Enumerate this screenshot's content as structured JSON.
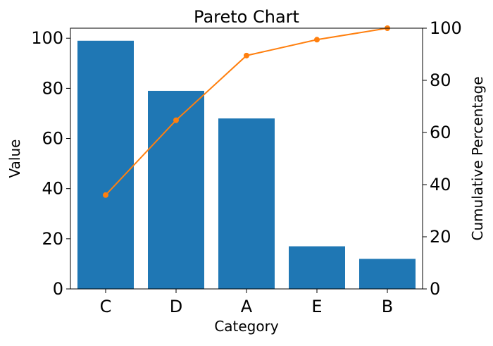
{
  "chart_data": {
    "type": "bar",
    "title": "Pareto Chart",
    "xlabel": "Category",
    "ylabel": "Value",
    "y2label": "Cumulative Percentage",
    "categories": [
      "C",
      "D",
      "A",
      "E",
      "B"
    ],
    "series": [
      {
        "type": "bar",
        "axis": "left",
        "values": [
          99,
          79,
          68,
          17,
          12
        ]
      },
      {
        "type": "line",
        "axis": "right",
        "values": [
          36.0,
          64.7,
          89.5,
          95.6,
          100.0
        ]
      }
    ],
    "ylim": [
      0,
      104
    ],
    "y2lim": [
      0,
      100
    ],
    "yticks": [
      0,
      20,
      40,
      60,
      80,
      100
    ],
    "y2ticks": [
      0,
      20,
      40,
      60,
      80,
      100
    ],
    "grid": false,
    "legend": "none",
    "colors": {
      "bar": "#1f77b4",
      "line": "#ff7f0e"
    }
  }
}
